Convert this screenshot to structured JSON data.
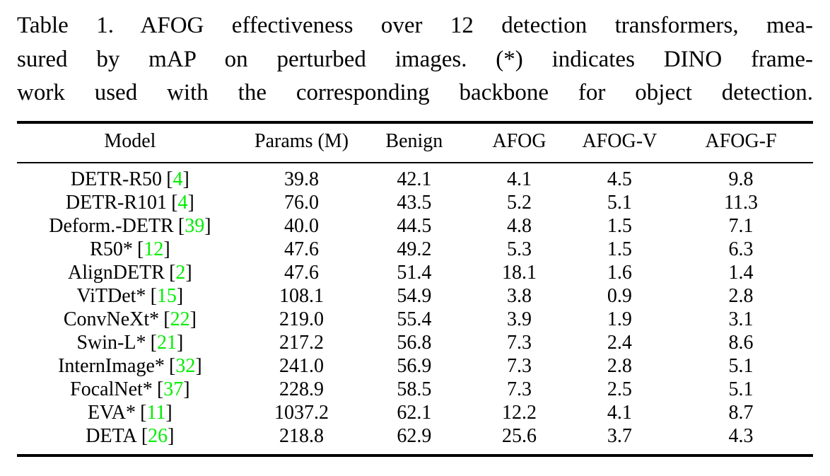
{
  "caption": {
    "lines": [
      "Table 1. AFOG effectiveness over 12 detection transformers, mea-",
      "sured by mAP on perturbed images.  (*) indicates DINO frame-",
      "work used with the corresponding backbone for object detection."
    ]
  },
  "symbols": {
    "bracket_open": "[",
    "bracket_close": "]"
  },
  "colors": {
    "citation_green": "#00ee00"
  },
  "table": {
    "columns": [
      "Model",
      "Params (M)",
      "Benign",
      "AFOG",
      "AFOG-V",
      "AFOG-F"
    ],
    "rows": [
      {
        "model": "DETR-R50",
        "ref": "4",
        "values": [
          "39.8",
          "42.1",
          "4.1",
          "4.5",
          "9.8"
        ]
      },
      {
        "model": "DETR-R101",
        "ref": "4",
        "values": [
          "76.0",
          "43.5",
          "5.2",
          "5.1",
          "11.3"
        ]
      },
      {
        "model": "Deform.-DETR",
        "ref": "39",
        "values": [
          "40.0",
          "44.5",
          "4.8",
          "1.5",
          "7.1"
        ]
      },
      {
        "model": "R50*",
        "ref": "12",
        "values": [
          "47.6",
          "49.2",
          "5.3",
          "1.5",
          "6.3"
        ]
      },
      {
        "model": "AlignDETR",
        "ref": "2",
        "values": [
          "47.6",
          "51.4",
          "18.1",
          "1.6",
          "1.4"
        ]
      },
      {
        "model": "ViTDet*",
        "ref": "15",
        "values": [
          "108.1",
          "54.9",
          "3.8",
          "0.9",
          "2.8"
        ]
      },
      {
        "model": "ConvNeXt*",
        "ref": "22",
        "values": [
          "219.0",
          "55.4",
          "3.9",
          "1.9",
          "3.1"
        ]
      },
      {
        "model": "Swin-L*",
        "ref": "21",
        "values": [
          "217.2",
          "56.8",
          "7.3",
          "2.4",
          "8.6"
        ]
      },
      {
        "model": "InternImage*",
        "ref": "32",
        "values": [
          "241.0",
          "56.9",
          "7.3",
          "2.8",
          "5.1"
        ]
      },
      {
        "model": "FocalNet*",
        "ref": "37",
        "values": [
          "228.9",
          "58.5",
          "7.3",
          "2.5",
          "5.1"
        ]
      },
      {
        "model": "EVA*",
        "ref": "11",
        "values": [
          "1037.2",
          "62.1",
          "12.2",
          "4.1",
          "8.7"
        ]
      },
      {
        "model": "DETA",
        "ref": "26",
        "values": [
          "218.8",
          "62.9",
          "25.6",
          "3.7",
          "4.3"
        ]
      }
    ]
  },
  "chart_data": {
    "type": "table",
    "title": "Table 1. AFOG effectiveness over 12 detection transformers, measured by mAP on perturbed images. (*) indicates DINO framework used with the corresponding backbone for object detection.",
    "columns": [
      "Model",
      "Params (M)",
      "Benign",
      "AFOG",
      "AFOG-V",
      "AFOG-F"
    ],
    "rows": [
      [
        "DETR-R50 [4]",
        39.8,
        42.1,
        4.1,
        4.5,
        9.8
      ],
      [
        "DETR-R101 [4]",
        76.0,
        43.5,
        5.2,
        5.1,
        11.3
      ],
      [
        "Deform.-DETR [39]",
        40.0,
        44.5,
        4.8,
        1.5,
        7.1
      ],
      [
        "R50* [12]",
        47.6,
        49.2,
        5.3,
        1.5,
        6.3
      ],
      [
        "AlignDETR [2]",
        47.6,
        51.4,
        18.1,
        1.6,
        1.4
      ],
      [
        "ViTDet* [15]",
        108.1,
        54.9,
        3.8,
        0.9,
        2.8
      ],
      [
        "ConvNeXt* [22]",
        219.0,
        55.4,
        3.9,
        1.9,
        3.1
      ],
      [
        "Swin-L* [21]",
        217.2,
        56.8,
        7.3,
        2.4,
        8.6
      ],
      [
        "InternImage* [32]",
        241.0,
        56.9,
        7.3,
        2.8,
        5.1
      ],
      [
        "FocalNet* [37]",
        228.9,
        58.5,
        7.3,
        2.5,
        5.1
      ],
      [
        "EVA* [11]",
        1037.2,
        62.1,
        12.2,
        4.1,
        8.7
      ],
      [
        "DETA [26]",
        218.8,
        62.9,
        25.6,
        3.7,
        4.3
      ]
    ]
  }
}
